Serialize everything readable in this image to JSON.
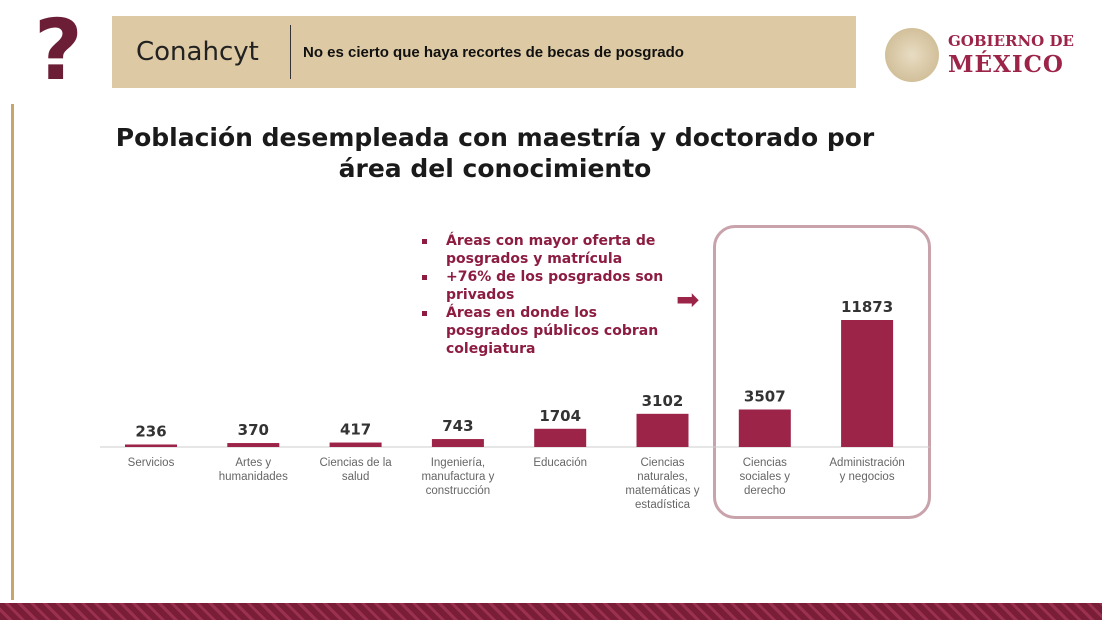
{
  "header": {
    "brand": "Conahcyt",
    "tagline": "No es cierto que haya recortes de becas de posgrado",
    "gov_line1": "GOBIERNO DE",
    "gov_line2": "MÉXICO",
    "icon": "question-mark-icon"
  },
  "notes": [
    "Áreas con mayor oferta de posgrados y matrícula",
    "+76% de los posgrados son privados",
    "Áreas en donde los posgrados públicos  cobran colegiatura"
  ],
  "chart_data": {
    "type": "bar",
    "title": "Población desempleada con maestría y doctorado por área del conocimiento",
    "categories": [
      "Servicios",
      "Artes y humanidades",
      "Ciencias de la salud",
      "Ingeniería, manufactura y construcción",
      "Educación",
      "Ciencias naturales, matemáticas y estadística",
      "Ciencias sociales y derecho",
      "Administración y negocios"
    ],
    "values": [
      236,
      370,
      417,
      743,
      1704,
      3102,
      3507,
      11873
    ],
    "highlighted": [
      "Ciencias sociales y derecho",
      "Administración y negocios"
    ],
    "ylim": [
      0,
      11873
    ],
    "bar_color": "#9d2449"
  }
}
